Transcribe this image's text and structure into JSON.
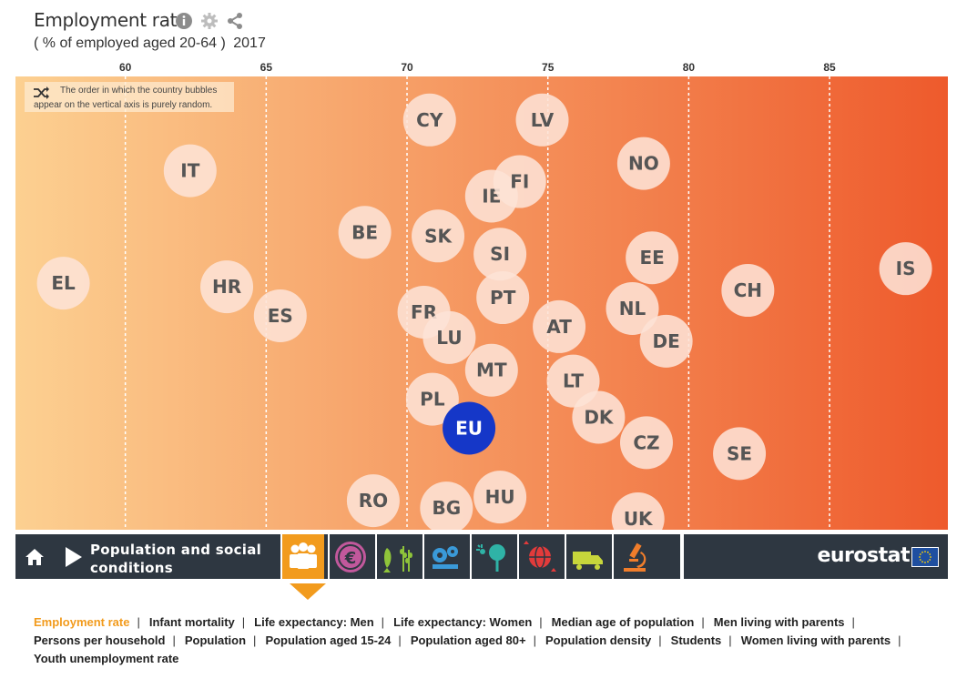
{
  "header": {
    "title": "Employment rate",
    "subtitle_measure": "( % of employed aged 20-64 )",
    "subtitle_year": "2017",
    "icons": [
      "info-icon",
      "gear-icon",
      "share-icon"
    ]
  },
  "note": {
    "icon": "shuffle-icon",
    "line1": "The order in which the country bubbles",
    "line2": "appear on the vertical axis is purely random."
  },
  "colors": {
    "gradient_start": "#fcd091",
    "gradient_end": "#ee5a2c",
    "bubble": "#fde3d6",
    "bubble_text": "#555555",
    "eu_bubble": "#1537c8",
    "nav_bg": "#2e3741",
    "accent": "#f29b1d"
  },
  "chart_data": {
    "type": "scatter",
    "x_ticks": [
      60,
      65,
      70,
      75,
      80,
      85
    ],
    "xlim": [
      56.1,
      89.2
    ],
    "y_meaning": "random (no axis)",
    "grid": "dotted vertical lines at ticks",
    "points": [
      {
        "label": "EL",
        "x": 57.8,
        "y": 0.57,
        "highlight": false
      },
      {
        "label": "IT",
        "x": 62.3,
        "y": 0.26,
        "highlight": false
      },
      {
        "label": "HR",
        "x": 63.6,
        "y": 0.58,
        "highlight": false
      },
      {
        "label": "ES",
        "x": 65.5,
        "y": 0.66,
        "highlight": false
      },
      {
        "label": "BE",
        "x": 68.5,
        "y": 0.43,
        "highlight": false
      },
      {
        "label": "RO",
        "x": 68.8,
        "y": 1.17,
        "highlight": false
      },
      {
        "label": "FR",
        "x": 70.6,
        "y": 0.65,
        "highlight": false
      },
      {
        "label": "PL",
        "x": 70.9,
        "y": 0.89,
        "highlight": false
      },
      {
        "label": "CY",
        "x": 70.8,
        "y": 0.12,
        "highlight": false
      },
      {
        "label": "SK",
        "x": 71.1,
        "y": 0.44,
        "highlight": false
      },
      {
        "label": "LU",
        "x": 71.5,
        "y": 0.72,
        "highlight": false
      },
      {
        "label": "BG",
        "x": 71.4,
        "y": 1.19,
        "highlight": false
      },
      {
        "label": "EU",
        "x": 72.2,
        "y": 0.97,
        "highlight": true
      },
      {
        "label": "IE",
        "x": 73.0,
        "y": 0.33,
        "highlight": false
      },
      {
        "label": "MT",
        "x": 73.0,
        "y": 0.81,
        "highlight": false
      },
      {
        "label": "SI",
        "x": 73.3,
        "y": 0.49,
        "highlight": false
      },
      {
        "label": "PT",
        "x": 73.4,
        "y": 0.61,
        "highlight": false
      },
      {
        "label": "HU",
        "x": 73.3,
        "y": 1.16,
        "highlight": false
      },
      {
        "label": "FI",
        "x": 74.0,
        "y": 0.29,
        "highlight": false
      },
      {
        "label": "LV",
        "x": 74.8,
        "y": 0.12,
        "highlight": false
      },
      {
        "label": "AT",
        "x": 75.4,
        "y": 0.69,
        "highlight": false
      },
      {
        "label": "LT",
        "x": 75.9,
        "y": 0.84,
        "highlight": false
      },
      {
        "label": "DK",
        "x": 76.8,
        "y": 0.94,
        "highlight": false
      },
      {
        "label": "NL",
        "x": 78.0,
        "y": 0.64,
        "highlight": false
      },
      {
        "label": "CZ",
        "x": 78.5,
        "y": 1.01,
        "highlight": false
      },
      {
        "label": "NO",
        "x": 78.4,
        "y": 0.24,
        "highlight": false
      },
      {
        "label": "EE",
        "x": 78.7,
        "y": 0.5,
        "highlight": false
      },
      {
        "label": "UK",
        "x": 78.2,
        "y": 1.22,
        "highlight": false
      },
      {
        "label": "DE",
        "x": 79.2,
        "y": 0.73,
        "highlight": false
      },
      {
        "label": "SE",
        "x": 81.8,
        "y": 1.04,
        "highlight": false
      },
      {
        "label": "CH",
        "x": 82.1,
        "y": 0.59,
        "highlight": false
      },
      {
        "label": "IS",
        "x": 87.7,
        "y": 0.53,
        "highlight": false
      }
    ]
  },
  "nav": {
    "home_icon": "home-icon",
    "play_icon": "play-icon",
    "section_line1": "Population and social",
    "section_line2": "conditions",
    "themes": [
      {
        "name": "people-icon",
        "active": true
      },
      {
        "name": "euro-icon",
        "active": false
      },
      {
        "name": "fish-wheat-icon",
        "active": false
      },
      {
        "name": "gears-icon",
        "active": false
      },
      {
        "name": "tree-sun-icon",
        "active": false
      },
      {
        "name": "globe-arrows-icon",
        "active": false
      },
      {
        "name": "truck-icon",
        "active": false
      },
      {
        "name": "microscope-icon",
        "active": false
      }
    ],
    "brand": "eurostat",
    "flag_icon": "eu-flag-icon"
  },
  "links": [
    {
      "label": "Employment rate",
      "active": true
    },
    {
      "label": "Infant mortality",
      "active": false
    },
    {
      "label": "Life expectancy: Men",
      "active": false
    },
    {
      "label": "Life expectancy: Women",
      "active": false
    },
    {
      "label": "Median age of population",
      "active": false
    },
    {
      "label": "Men living with parents",
      "active": false
    },
    {
      "label": "Persons per household",
      "active": false
    },
    {
      "label": "Population",
      "active": false
    },
    {
      "label": "Population aged 15-24",
      "active": false
    },
    {
      "label": "Population aged 80+",
      "active": false
    },
    {
      "label": "Population density",
      "active": false
    },
    {
      "label": "Students",
      "active": false
    },
    {
      "label": "Women living with parents",
      "active": false
    },
    {
      "label": "Youth unemployment rate",
      "active": false
    }
  ]
}
